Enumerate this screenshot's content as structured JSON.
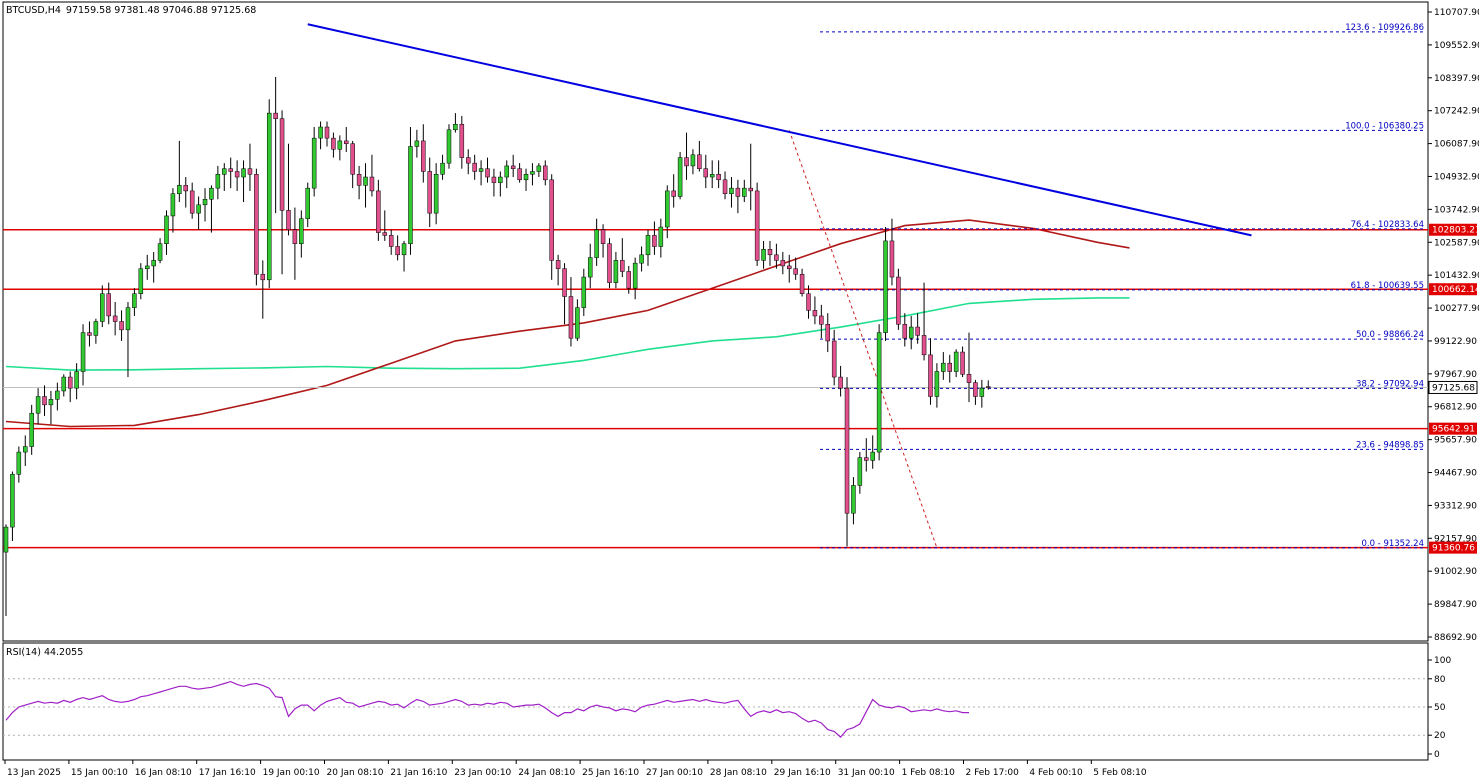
{
  "header": {
    "symbol": "BTCUSD,H4",
    "ohlc": "97159.58 97381.48 97046.88 97125.68"
  },
  "rsi_header": "RSI(14) 44.2055",
  "colors": {
    "bull": "#32c832",
    "bear": "#e0508c",
    "wick": "#000000",
    "trendline": "#0000e0",
    "ma_slow": "#b01818",
    "ma_fast": "#20e090",
    "hline": "#e00000",
    "fib": "#0000c0",
    "rsi": "#a020c8"
  },
  "price_axis": {
    "min": 88000,
    "max": 111000,
    "labels": [
      "110707.90",
      "109552.90",
      "108397.90",
      "107242.90",
      "106087.90",
      "104932.90",
      "103742.90",
      "102587.90",
      "101432.90",
      "100277.90",
      "99122.90",
      "97967.90",
      "96812.90",
      "95657.90",
      "94467.90",
      "93312.90",
      "92157.90",
      "91002.90",
      "89847.90",
      "88692.90"
    ]
  },
  "price_tags": [
    {
      "text": "102803.21",
      "value": 102803.21
    },
    {
      "text": "100662.14",
      "value": 100662.14
    },
    {
      "text": "95642.91",
      "value": 95642.91
    },
    {
      "text": "91360.76",
      "value": 91360.76
    }
  ],
  "current_price": {
    "text": "97125.68",
    "value": 97125.68
  },
  "fib_levels": [
    {
      "label": "123.6 - 109926.86",
      "value": 109926.86
    },
    {
      "label": "100.0 - 106380.25",
      "value": 106380.25
    },
    {
      "label": "76.4 - 102833.64",
      "value": 102833.64
    },
    {
      "label": "61.8 - 100639.55",
      "value": 100639.55
    },
    {
      "label": "50.0 - 98866.24",
      "value": 98866.24
    },
    {
      "label": "38.2 - 97092.94",
      "value": 97092.94
    },
    {
      "label": "23.6 - 94898.85",
      "value": 94898.85
    },
    {
      "label": "0.0 - 91352.24",
      "value": 91352.24
    }
  ],
  "time_axis": {
    "labels": [
      "13 Jan 2025",
      "15 Jan 00:10",
      "16 Jan 08:10",
      "17 Jan 16:10",
      "19 Jan 00:10",
      "20 Jan 08:10",
      "21 Jan 16:10",
      "23 Jan 00:10",
      "24 Jan 08:10",
      "25 Jan 16:10",
      "27 Jan 00:10",
      "28 Jan 08:10",
      "29 Jan 16:10",
      "31 Jan 00:10",
      "1 Feb 08:10",
      "2 Feb 17:00",
      "4 Feb 00:10",
      "5 Feb 08:10"
    ]
  },
  "rsi_axis": {
    "labels": [
      "100",
      "80",
      "50",
      "20",
      "0"
    ]
  },
  "chart_data": {
    "type": "candlestick",
    "candles_ohlc": [
      [
        91200,
        92200,
        88900,
        92100
      ],
      [
        92100,
        94100,
        91600,
        94000
      ],
      [
        94000,
        95000,
        93700,
        94800
      ],
      [
        94800,
        95400,
        94300,
        95000
      ],
      [
        95000,
        96500,
        94700,
        96200
      ],
      [
        96200,
        97100,
        95800,
        96800
      ],
      [
        96800,
        97200,
        96100,
        96500
      ],
      [
        96500,
        97000,
        95800,
        96700
      ],
      [
        96700,
        97300,
        96300,
        97000
      ],
      [
        97000,
        97600,
        96800,
        97500
      ],
      [
        97500,
        97700,
        96600,
        97100
      ],
      [
        97100,
        98000,
        96700,
        97700
      ],
      [
        97700,
        99400,
        97200,
        99100
      ],
      [
        99100,
        99500,
        98600,
        99000
      ],
      [
        99000,
        99600,
        98700,
        99500
      ],
      [
        99500,
        100800,
        99300,
        100500
      ],
      [
        100500,
        100900,
        99400,
        99700
      ],
      [
        99700,
        100200,
        99000,
        99500
      ],
      [
        99500,
        99900,
        98800,
        99200
      ],
      [
        99200,
        100200,
        97500,
        100000
      ],
      [
        100000,
        100700,
        99700,
        100500
      ],
      [
        100500,
        101600,
        100300,
        101400
      ],
      [
        101400,
        101900,
        101000,
        101500
      ],
      [
        101500,
        102000,
        100900,
        101700
      ],
      [
        101700,
        102500,
        101600,
        102300
      ],
      [
        102300,
        103500,
        101900,
        103300
      ],
      [
        103300,
        104300,
        102700,
        104100
      ],
      [
        104100,
        106000,
        103800,
        104400
      ],
      [
        104400,
        104700,
        103600,
        104200
      ],
      [
        104200,
        104500,
        103200,
        103400
      ],
      [
        103400,
        104000,
        102800,
        103700
      ],
      [
        103700,
        104300,
        103100,
        103900
      ],
      [
        103900,
        104400,
        102700,
        104300
      ],
      [
        104300,
        105100,
        103900,
        104800
      ],
      [
        104800,
        105200,
        104200,
        105000
      ],
      [
        105000,
        105400,
        104300,
        104900
      ],
      [
        104900,
        105300,
        104200,
        104700
      ],
      [
        104700,
        105300,
        103800,
        105000
      ],
      [
        105000,
        105900,
        104200,
        104800
      ],
      [
        104800,
        105000,
        100800,
        101200
      ],
      [
        101200,
        101700,
        99600,
        101000
      ],
      [
        101000,
        107500,
        100700,
        107000
      ],
      [
        107000,
        108300,
        103400,
        106800
      ],
      [
        106800,
        107100,
        101200,
        103500
      ],
      [
        103500,
        105900,
        102600,
        102800
      ],
      [
        102800,
        103600,
        101000,
        102300
      ],
      [
        102300,
        103500,
        101800,
        103200
      ],
      [
        103200,
        104500,
        102900,
        104300
      ],
      [
        104300,
        106500,
        104000,
        106100
      ],
      [
        106100,
        106700,
        105700,
        106500
      ],
      [
        106500,
        106700,
        105800,
        106100
      ],
      [
        106100,
        106300,
        105400,
        105700
      ],
      [
        105700,
        106200,
        105300,
        106000
      ],
      [
        106000,
        106500,
        105600,
        105900
      ],
      [
        105900,
        106000,
        104300,
        104800
      ],
      [
        104800,
        105100,
        103900,
        104400
      ],
      [
        104400,
        105200,
        103600,
        104700
      ],
      [
        104700,
        105500,
        104000,
        104200
      ],
      [
        104200,
        104600,
        102400,
        102700
      ],
      [
        102700,
        103500,
        102400,
        102600
      ],
      [
        102600,
        102800,
        101900,
        102200
      ],
      [
        102200,
        102600,
        101700,
        101900
      ],
      [
        101900,
        102400,
        101300,
        102300
      ],
      [
        102300,
        106500,
        101900,
        105800
      ],
      [
        105800,
        106400,
        105400,
        106000
      ],
      [
        106000,
        106600,
        104500,
        104900
      ],
      [
        104900,
        105400,
        102900,
        103400
      ],
      [
        103400,
        105200,
        103000,
        104800
      ],
      [
        104800,
        105500,
        104600,
        105200
      ],
      [
        105200,
        106600,
        105000,
        106400
      ],
      [
        106400,
        107000,
        106300,
        106600
      ],
      [
        106600,
        106900,
        105000,
        105400
      ],
      [
        105400,
        105700,
        104800,
        105200
      ],
      [
        105200,
        105500,
        104600,
        104900
      ],
      [
        104900,
        105300,
        104400,
        105000
      ],
      [
        105000,
        105400,
        104500,
        104700
      ],
      [
        104700,
        105000,
        104000,
        104500
      ],
      [
        104500,
        104900,
        104000,
        104700
      ],
      [
        104700,
        105300,
        104300,
        105100
      ],
      [
        105100,
        105500,
        104700,
        105000
      ],
      [
        105000,
        105200,
        104500,
        104600
      ],
      [
        104600,
        105000,
        104200,
        104800
      ],
      [
        104800,
        105200,
        104400,
        104900
      ],
      [
        104900,
        105200,
        104700,
        105100
      ],
      [
        105100,
        105300,
        104400,
        104600
      ],
      [
        104600,
        104800,
        101000,
        101700
      ],
      [
        101700,
        101900,
        100800,
        101400
      ],
      [
        101400,
        101600,
        99400,
        100400
      ],
      [
        100400,
        101100,
        98600,
        98900
      ],
      [
        98900,
        100300,
        98800,
        100000
      ],
      [
        100000,
        101400,
        99700,
        101100
      ],
      [
        101100,
        102300,
        100700,
        101800
      ],
      [
        101800,
        103200,
        101500,
        102800
      ],
      [
        102800,
        103000,
        101800,
        102300
      ],
      [
        102300,
        102500,
        100700,
        100900
      ],
      [
        100900,
        102000,
        100700,
        101700
      ],
      [
        101700,
        102500,
        101100,
        101300
      ],
      [
        101300,
        101500,
        100500,
        100700
      ],
      [
        100700,
        101800,
        100300,
        101600
      ],
      [
        101600,
        102200,
        101300,
        101900
      ],
      [
        101900,
        102800,
        101500,
        102600
      ],
      [
        102600,
        103100,
        101900,
        102200
      ],
      [
        102200,
        103200,
        101800,
        102900
      ],
      [
        102900,
        104400,
        102500,
        104200
      ],
      [
        104200,
        104800,
        103600,
        104000
      ],
      [
        104000,
        105600,
        103900,
        105400
      ],
      [
        105400,
        106300,
        104600,
        105100
      ],
      [
        105100,
        105700,
        104800,
        105500
      ],
      [
        105500,
        106000,
        104900,
        105000
      ],
      [
        105000,
        105500,
        104300,
        104700
      ],
      [
        104700,
        105300,
        104300,
        104800
      ],
      [
        104800,
        105300,
        104300,
        104600
      ],
      [
        104600,
        104900,
        103900,
        104100
      ],
      [
        104100,
        104700,
        103600,
        104300
      ],
      [
        104300,
        104600,
        103400,
        104000
      ],
      [
        104000,
        104600,
        103800,
        104300
      ],
      [
        104300,
        105900,
        103500,
        104200
      ],
      [
        104200,
        104500,
        101500,
        101700
      ],
      [
        101700,
        102400,
        101400,
        102100
      ],
      [
        102100,
        102400,
        101500,
        101900
      ],
      [
        101900,
        102300,
        101400,
        101700
      ],
      [
        101700,
        102000,
        101200,
        101500
      ],
      [
        101500,
        101900,
        100900,
        101400
      ],
      [
        101400,
        101800,
        101000,
        101200
      ],
      [
        101200,
        101400,
        100400,
        100500
      ],
      [
        100500,
        100800,
        99600,
        99900
      ],
      [
        99900,
        100400,
        99400,
        99700
      ],
      [
        99700,
        100100,
        98900,
        99400
      ],
      [
        99400,
        99800,
        98400,
        98800
      ],
      [
        98800,
        99200,
        97200,
        97500
      ],
      [
        97500,
        97900,
        96800,
        97100
      ],
      [
        97100,
        97500,
        91400,
        92600
      ],
      [
        92600,
        93900,
        92200,
        93600
      ],
      [
        93600,
        94800,
        93300,
        94600
      ],
      [
        94600,
        95300,
        94100,
        94500
      ],
      [
        94500,
        95400,
        94200,
        94800
      ],
      [
        94800,
        99400,
        94500,
        99100
      ],
      [
        99100,
        102900,
        98800,
        102400
      ],
      [
        102400,
        103200,
        100800,
        101100
      ],
      [
        101100,
        101400,
        99200,
        99400
      ],
      [
        99400,
        99800,
        98600,
        98900
      ],
      [
        98900,
        99700,
        98500,
        99300
      ],
      [
        99300,
        99800,
        98700,
        99000
      ],
      [
        99000,
        100900,
        98100,
        98300
      ],
      [
        98300,
        98900,
        96500,
        96800
      ],
      [
        96800,
        98000,
        96400,
        97700
      ],
      [
        97700,
        98400,
        97400,
        98000
      ],
      [
        98000,
        98300,
        97300,
        97700
      ],
      [
        97700,
        98500,
        97500,
        98400
      ],
      [
        98400,
        98600,
        97500,
        97600
      ],
      [
        97600,
        99100,
        96600,
        97300
      ],
      [
        97300,
        97400,
        96500,
        96800
      ],
      [
        96800,
        97400,
        96400,
        97100
      ],
      [
        97159.58,
        97381.48,
        97046.88,
        97125.68
      ]
    ],
    "rsi": [
      36,
      44,
      50,
      52,
      54,
      56,
      54,
      55,
      54,
      57,
      55,
      58,
      60,
      58,
      60,
      62,
      58,
      56,
      55,
      56,
      58,
      61,
      62,
      64,
      66,
      68,
      70,
      72,
      72,
      70,
      69,
      70,
      71,
      73,
      75,
      77,
      74,
      72,
      74,
      75,
      73,
      70,
      61,
      60,
      40,
      48,
      52,
      52,
      46,
      52,
      56,
      58,
      60,
      55,
      54,
      50,
      52,
      54,
      56,
      55,
      52,
      53,
      49,
      54,
      58,
      56,
      52,
      53,
      54,
      56,
      58,
      56,
      52,
      53,
      52,
      54,
      53,
      55,
      54,
      50,
      51,
      52,
      52,
      53,
      49,
      44,
      40,
      44,
      44,
      48,
      46,
      50,
      52,
      50,
      49,
      46,
      48,
      47,
      45,
      50,
      52,
      53,
      55,
      57,
      55,
      56,
      57,
      58,
      56,
      58,
      56,
      55,
      54,
      56,
      57,
      48,
      40,
      44,
      46,
      44,
      47,
      44,
      45,
      43,
      38,
      34,
      36,
      33,
      26,
      24,
      18,
      26,
      28,
      32,
      45,
      58,
      52,
      50,
      49,
      51,
      49,
      45,
      46,
      47,
      46,
      48,
      46,
      45,
      46,
      44,
      44
    ],
    "ma_slow_points": [
      [
        0,
        95900
      ],
      [
        10,
        95720
      ],
      [
        20,
        95760
      ],
      [
        30,
        96150
      ],
      [
        40,
        96650
      ],
      [
        50,
        97200
      ],
      [
        60,
        98000
      ],
      [
        70,
        98800
      ],
      [
        80,
        99150
      ],
      [
        90,
        99450
      ],
      [
        100,
        99900
      ],
      [
        110,
        100700
      ],
      [
        120,
        101500
      ],
      [
        130,
        102300
      ],
      [
        140,
        102950
      ],
      [
        150,
        103150
      ],
      [
        160,
        102850
      ],
      [
        170,
        102350
      ],
      [
        175,
        102150
      ]
    ],
    "ma_fast_points": [
      [
        0,
        97880
      ],
      [
        10,
        97750
      ],
      [
        20,
        97760
      ],
      [
        30,
        97800
      ],
      [
        40,
        97830
      ],
      [
        50,
        97880
      ],
      [
        60,
        97820
      ],
      [
        70,
        97800
      ],
      [
        80,
        97820
      ],
      [
        90,
        98100
      ],
      [
        100,
        98500
      ],
      [
        110,
        98800
      ],
      [
        120,
        98950
      ],
      [
        130,
        99300
      ],
      [
        140,
        99700
      ],
      [
        150,
        100150
      ],
      [
        160,
        100300
      ],
      [
        170,
        100350
      ],
      [
        175,
        100350
      ]
    ],
    "trendline": [
      [
        47,
        110200
      ],
      [
        194,
        102600
      ]
    ],
    "fib_diagonal": [
      [
        122,
        106380.25
      ],
      [
        145,
        91352.24
      ]
    ],
    "rsi_range": [
      0,
      100
    ],
    "rsi_levels": [
      80,
      50,
      20
    ]
  }
}
